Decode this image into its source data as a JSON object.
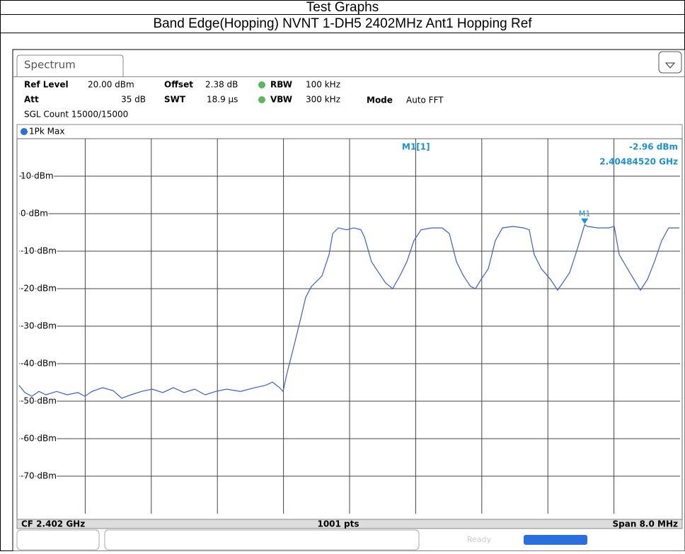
{
  "header": {
    "title": "Test Graphs",
    "subtitle": "Band Edge(Hopping) NVNT 1-DH5 2402MHz Ant1 Hopping Ref"
  },
  "instrument": {
    "tab": "Spectrum",
    "settings": [
      [
        "Ref Level",
        "20.00 dBm",
        "Offset",
        "2.38 dB",
        "RBW",
        "100 kHz"
      ],
      [
        "Att",
        "35 dB",
        "SWT",
        "18.9 µs",
        "VBW",
        "300 kHz",
        "Mode",
        "Auto FFT"
      ]
    ],
    "count": "SGL Count 15000/15000",
    "footer": {
      "left": "CF 2.402 GHz",
      "center": "1001 pts",
      "right": "Span 8.0 MHz"
    },
    "status": "Ready"
  },
  "chart_data": {
    "type": "line",
    "trace_label": "1Pk Max",
    "xlim": [
      2.398,
      2.406
    ],
    "ylim": [
      -80,
      20
    ],
    "yticks": [
      {
        "value": 10,
        "label": "10 dBm"
      },
      {
        "value": 0,
        "label": "0 dBm"
      },
      {
        "value": -10,
        "label": "-10 dBm"
      },
      {
        "value": -20,
        "label": "-20 dBm"
      },
      {
        "value": -30,
        "label": "-30 dBm"
      },
      {
        "value": -40,
        "label": "-40 dBm"
      },
      {
        "value": -50,
        "label": "-50 dBm"
      },
      {
        "value": -60,
        "label": "-60 dBm"
      },
      {
        "value": -70,
        "label": "-70 dBm"
      }
    ],
    "grid": true,
    "x": [
      2.398,
      2.398069,
      2.398154,
      2.39824,
      2.398325,
      2.398454,
      2.398582,
      2.398711,
      2.398797,
      2.398882,
      2.399011,
      2.399139,
      2.399242,
      2.399353,
      2.399482,
      2.39961,
      2.399739,
      2.399867,
      2.399996,
      2.400124,
      2.400253,
      2.400381,
      2.40051,
      2.400681,
      2.400852,
      2.400981,
      2.401066,
      2.401152,
      2.401195,
      2.401238,
      2.401324,
      2.401409,
      2.401469,
      2.401538,
      2.401666,
      2.401752,
      2.401795,
      2.401863,
      2.401966,
      2.402051,
      2.402137,
      2.40218,
      2.402265,
      2.402351,
      2.402437,
      2.402522,
      2.402608,
      2.402694,
      2.402779,
      2.402865,
      2.402993,
      2.403122,
      2.403208,
      2.403293,
      2.403379,
      2.403464,
      2.403524,
      2.403593,
      2.403679,
      2.403764,
      2.40385,
      2.403978,
      2.404107,
      2.404175,
      2.404235,
      2.404321,
      2.404432,
      2.404518,
      2.404578,
      2.404664,
      2.404749,
      2.404845,
      2.404878,
      2.405006,
      2.405135,
      2.405203,
      2.405263,
      2.405391,
      2.40552,
      2.405606,
      2.405691,
      2.405777,
      2.405862,
      2.405991
    ],
    "series": [
      {
        "name": "1Pk Max",
        "color": "#3a5fd0",
        "values": [
          -45.8,
          -47.7,
          -48.7,
          -47.4,
          -48.3,
          -47.4,
          -48.3,
          -47.7,
          -48.7,
          -47.4,
          -46.4,
          -47.2,
          -49.2,
          -48.3,
          -47.4,
          -46.8,
          -47.7,
          -46.4,
          -47.7,
          -46.8,
          -48.3,
          -47.4,
          -46.8,
          -47.4,
          -46.4,
          -45.8,
          -44.9,
          -46.4,
          -47.4,
          -43.0,
          -35.5,
          -27.9,
          -22.3,
          -19.4,
          -16.6,
          -10.9,
          -5.3,
          -3.8,
          -4.3,
          -3.8,
          -4.3,
          -6.2,
          -12.8,
          -15.7,
          -18.5,
          -20.0,
          -16.6,
          -12.8,
          -7.2,
          -4.3,
          -3.8,
          -3.8,
          -5.3,
          -12.8,
          -16.6,
          -19.4,
          -20.0,
          -17.5,
          -14.7,
          -7.2,
          -3.8,
          -3.4,
          -3.8,
          -4.3,
          -10.9,
          -14.7,
          -17.5,
          -20.4,
          -18.5,
          -15.7,
          -10.0,
          -2.96,
          -3.4,
          -3.8,
          -3.8,
          -3.4,
          -10.9,
          -15.7,
          -20.4,
          -17.5,
          -12.8,
          -7.2,
          -3.8,
          -3.8
        ]
      }
    ],
    "marker": {
      "name": "M1",
      "readout": "M1[1]",
      "x": 2.4048452,
      "y": -2.96,
      "value_label": "-2.96 dBm",
      "x_label": "2.40484520 GHz",
      "color": "#1e90d8"
    }
  }
}
